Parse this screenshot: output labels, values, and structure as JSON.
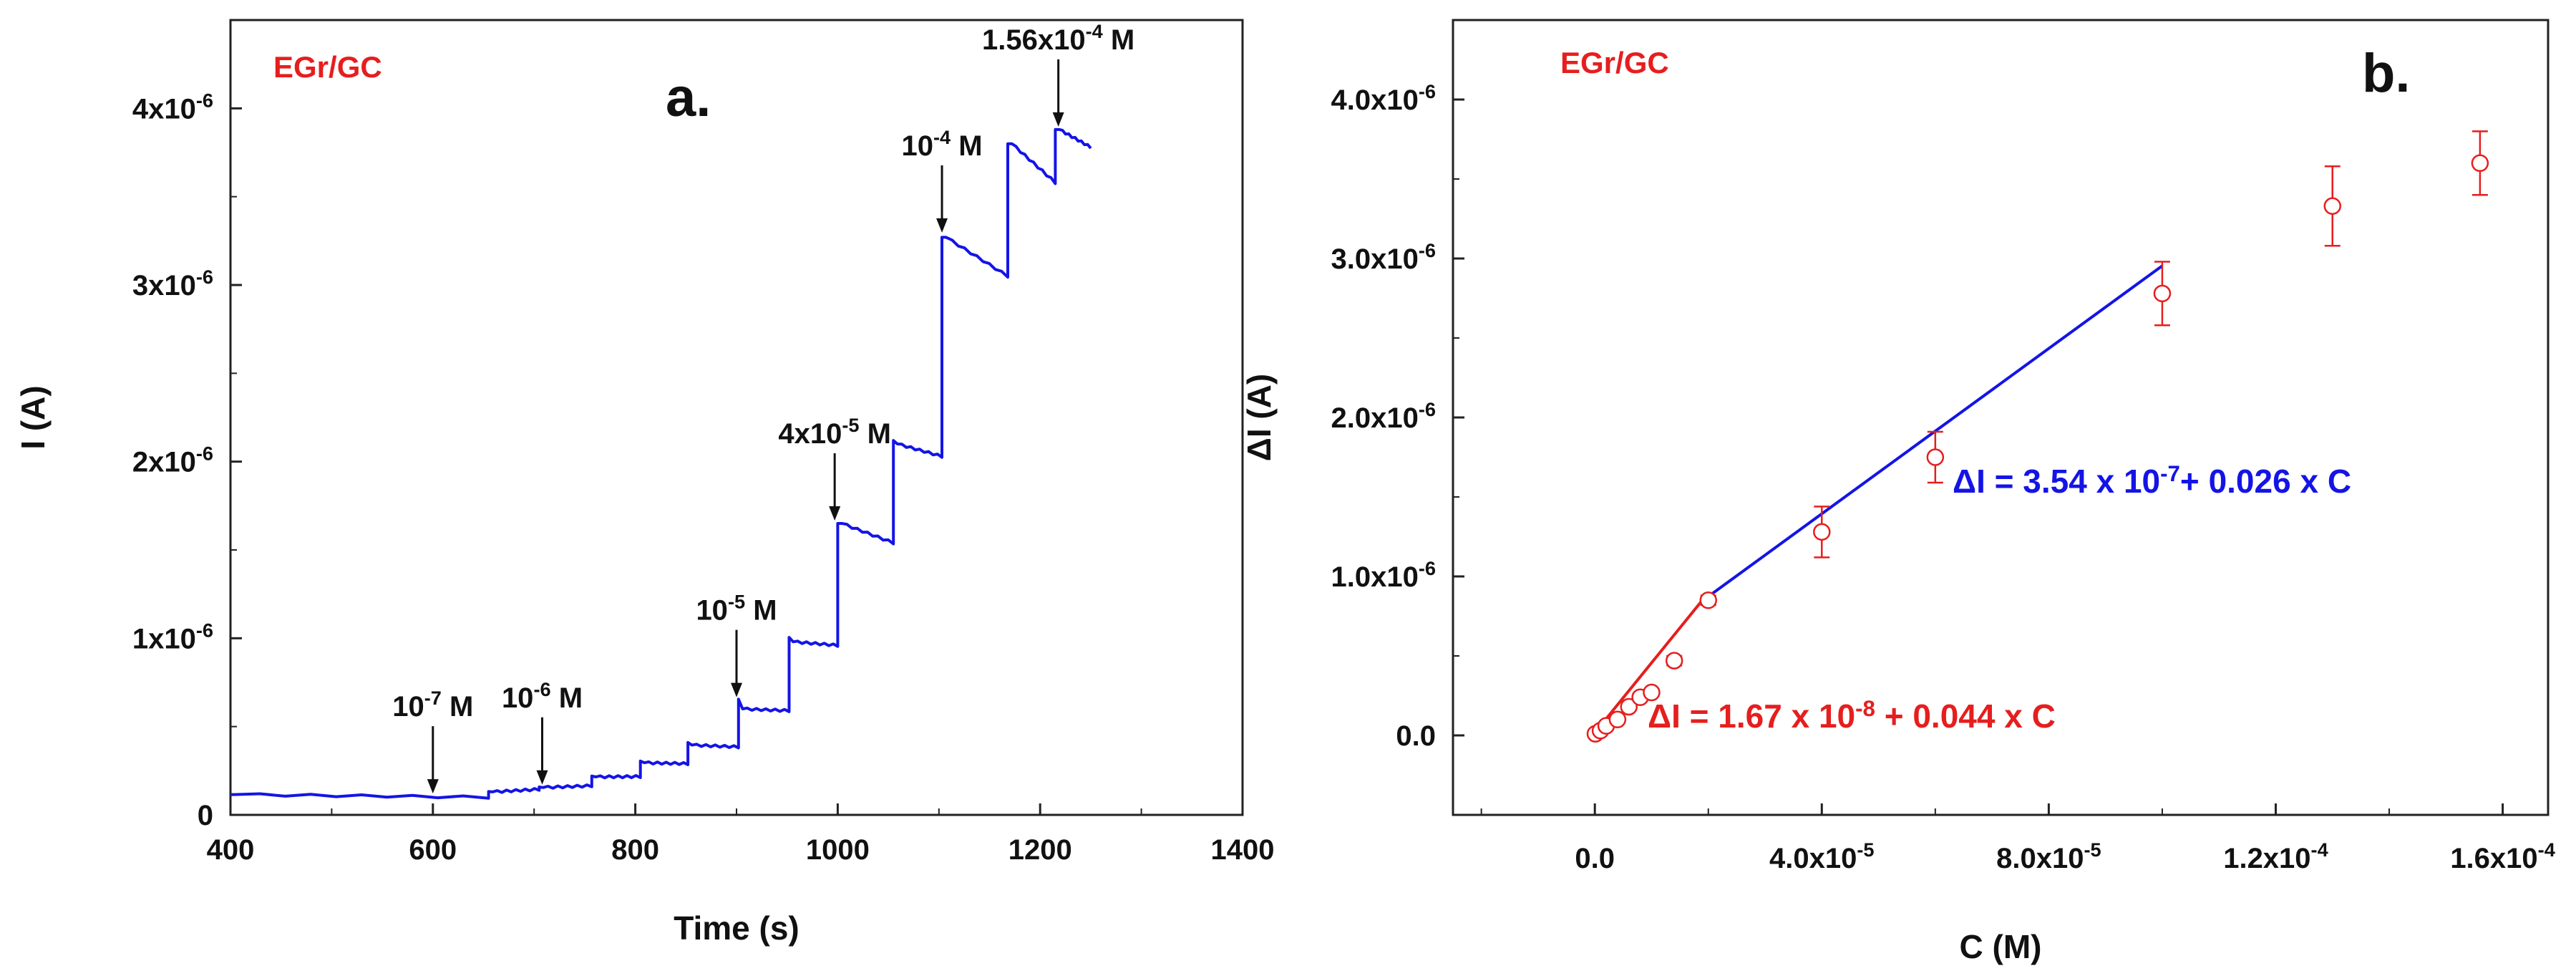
{
  "chart_data": [
    {
      "type": "line",
      "panel_label": "a.",
      "tag": "EGr/GC",
      "xlabel": "Time (s)",
      "ylabel": "I (A)",
      "xlim": [
        400,
        1400
      ],
      "ylim": [
        0,
        4.5e-06
      ],
      "x_ticks": [
        400,
        600,
        800,
        1000,
        1200,
        1400
      ],
      "y_ticks": [
        {
          "value": 0,
          "base": "0",
          "exp": ""
        },
        {
          "value": 1e-06,
          "base": "1x10",
          "exp": "-6"
        },
        {
          "value": 2e-06,
          "base": "2x10",
          "exp": "-6"
        },
        {
          "value": 3e-06,
          "base": "3x10",
          "exp": "-6"
        },
        {
          "value": 4e-06,
          "base": "4x10",
          "exp": "-6"
        }
      ],
      "color": "#1414e6",
      "steps": [
        {
          "t": 400,
          "i": 1.15e-07,
          "spike": 0,
          "drift": -1.5e-08
        },
        {
          "t": 655,
          "i": 1.3e-07,
          "spike": 2e-09,
          "drift": 1.5e-08
        },
        {
          "t": 705,
          "i": 1.55e-07,
          "spike": 3e-09,
          "drift": 1e-08
        },
        {
          "t": 757,
          "i": 2.15e-07,
          "spike": 5e-09,
          "drift": 2e-09
        },
        {
          "t": 805,
          "i": 2.95e-07,
          "spike": 1e-08,
          "drift": -5e-09
        },
        {
          "t": 852,
          "i": 3.95e-07,
          "spike": 1.5e-08,
          "drift": -1e-08
        },
        {
          "t": 902,
          "i": 6e-07,
          "spike": 5.5e-08,
          "drift": -1e-08
        },
        {
          "t": 952,
          "i": 9.8e-07,
          "spike": 2.5e-08,
          "drift": -2e-08
        },
        {
          "t": 1000,
          "i": 1.65e-06,
          "spike": 0,
          "drift": -1.1e-07
        },
        {
          "t": 1055,
          "i": 2.1e-06,
          "spike": 2e-08,
          "drift": -7e-08
        },
        {
          "t": 1103,
          "i": 3.27e-06,
          "spike": 0,
          "drift": -2.2e-07
        },
        {
          "t": 1168,
          "i": 3.8e-06,
          "spike": 0,
          "drift": -2.2e-07
        },
        {
          "t": 1215,
          "i": 3.88e-06,
          "spike": 0,
          "drift": -1e-07
        }
      ],
      "end_time": 1250,
      "annotations": [
        {
          "base": "10",
          "exp": "-7",
          "suffix": " M",
          "arrow_x": 600,
          "arrow_y": 1.05e-07
        },
        {
          "base": "10",
          "exp": "-6",
          "suffix": " M",
          "arrow_x": 708,
          "arrow_y": 1.55e-07
        },
        {
          "base": "10",
          "exp": "-5",
          "suffix": " M",
          "arrow_x": 900,
          "arrow_y": 6.5e-07
        },
        {
          "base": "4x10",
          "exp": "-5",
          "suffix": " M",
          "arrow_x": 997,
          "arrow_y": 1.65e-06
        },
        {
          "base": "10",
          "exp": "-4",
          "suffix": " M",
          "arrow_x": 1103,
          "arrow_y": 3.28e-06
        },
        {
          "base": "1.56x10",
          "exp": "-4",
          "suffix": " M",
          "arrow_x": 1218,
          "arrow_y": 3.88e-06
        }
      ]
    },
    {
      "type": "scatter",
      "panel_label": "b.",
      "tag": "EGr/GC",
      "xlabel": "C (M)",
      "ylabel": "ΔI (A)",
      "xlim": [
        -2.5e-05,
        0.000168
      ],
      "ylim": [
        -5e-07,
        4.5e-06
      ],
      "x_ticks": [
        {
          "value": 0,
          "base": "0.0",
          "exp": ""
        },
        {
          "value": 4e-05,
          "base": "4.0x10",
          "exp": "-5"
        },
        {
          "value": 8e-05,
          "base": "8.0x10",
          "exp": "-5"
        },
        {
          "value": 0.00012,
          "base": "1.2x10",
          "exp": "-4"
        },
        {
          "value": 0.00016,
          "base": "1.6x10",
          "exp": "-4"
        }
      ],
      "y_ticks": [
        {
          "value": 0,
          "base": "0.0",
          "exp": ""
        },
        {
          "value": 1e-06,
          "base": "1.0x10",
          "exp": "-6"
        },
        {
          "value": 2e-06,
          "base": "2.0x10",
          "exp": "-6"
        },
        {
          "value": 3e-06,
          "base": "3.0x10",
          "exp": "-6"
        },
        {
          "value": 4e-06,
          "base": "4.0x10",
          "exp": "-6"
        }
      ],
      "points": [
        {
          "c": 1e-07,
          "di": 1e-08,
          "err": 2e-08
        },
        {
          "c": 1e-06,
          "di": 3e-08,
          "err": 2e-08
        },
        {
          "c": 2e-06,
          "di": 6e-08,
          "err": 2e-08
        },
        {
          "c": 4e-06,
          "di": 1e-07,
          "err": 2e-08
        },
        {
          "c": 6e-06,
          "di": 1.8e-07,
          "err": 2e-08
        },
        {
          "c": 8e-06,
          "di": 2.4e-07,
          "err": 2e-08
        },
        {
          "c": 1e-05,
          "di": 2.7e-07,
          "err": 2e-08
        },
        {
          "c": 1.4e-05,
          "di": 4.7e-07,
          "err": 3e-08
        },
        {
          "c": 2e-05,
          "di": 8.5e-07,
          "err": 3e-08
        },
        {
          "c": 4e-05,
          "di": 1.28e-06,
          "err": 1.6e-07
        },
        {
          "c": 6e-05,
          "di": 1.75e-06,
          "err": 1.6e-07
        },
        {
          "c": 0.0001,
          "di": 2.78e-06,
          "err": 2e-07
        },
        {
          "c": 0.00013,
          "di": 3.33e-06,
          "err": 2.5e-07
        },
        {
          "c": 0.000156,
          "di": 3.6e-06,
          "err": 2e-07
        }
      ],
      "point_color": "#e61e1e",
      "fits": [
        {
          "intercept": 1.67e-08,
          "slope": 0.044,
          "x_range": [
            0,
            2e-05
          ],
          "color": "#e61e1e",
          "label_parts": [
            "ΔI = 1.67 x 10",
            "-8",
            " + 0.044 x C"
          ]
        },
        {
          "intercept": 3.54e-07,
          "slope": 0.026,
          "x_range": [
            2e-05,
            0.0001
          ],
          "color": "#1414e6",
          "label_parts": [
            "ΔI = 3.54 x 10",
            "-7",
            "+ 0.026 x C"
          ]
        }
      ]
    }
  ]
}
